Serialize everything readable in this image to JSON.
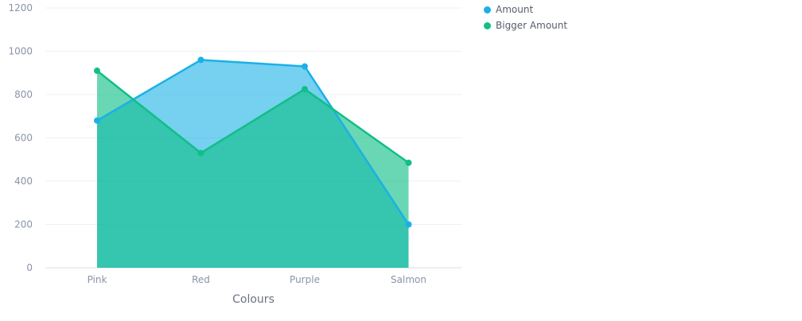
{
  "chart_data": {
    "type": "area",
    "categories": [
      "Pink",
      "Red",
      "Purple",
      "Salmon"
    ],
    "series": [
      {
        "name": "Amount",
        "values": [
          680,
          960,
          930,
          200
        ],
        "color": "#1ab1e6",
        "fill": "rgba(26,177,230,0.6)"
      },
      {
        "name": "Bigger Amount",
        "values": [
          910,
          530,
          825,
          485
        ],
        "color": "#0fbf86",
        "fill": "rgba(15,191,134,0.62)"
      }
    ],
    "xlabel": "Colours",
    "ylabel": "",
    "ylim": [
      0,
      1200
    ],
    "yticks": [
      "0",
      "200",
      "400",
      "600",
      "800",
      "1000",
      "1200"
    ],
    "grid": true,
    "legend_position": "top-right"
  }
}
